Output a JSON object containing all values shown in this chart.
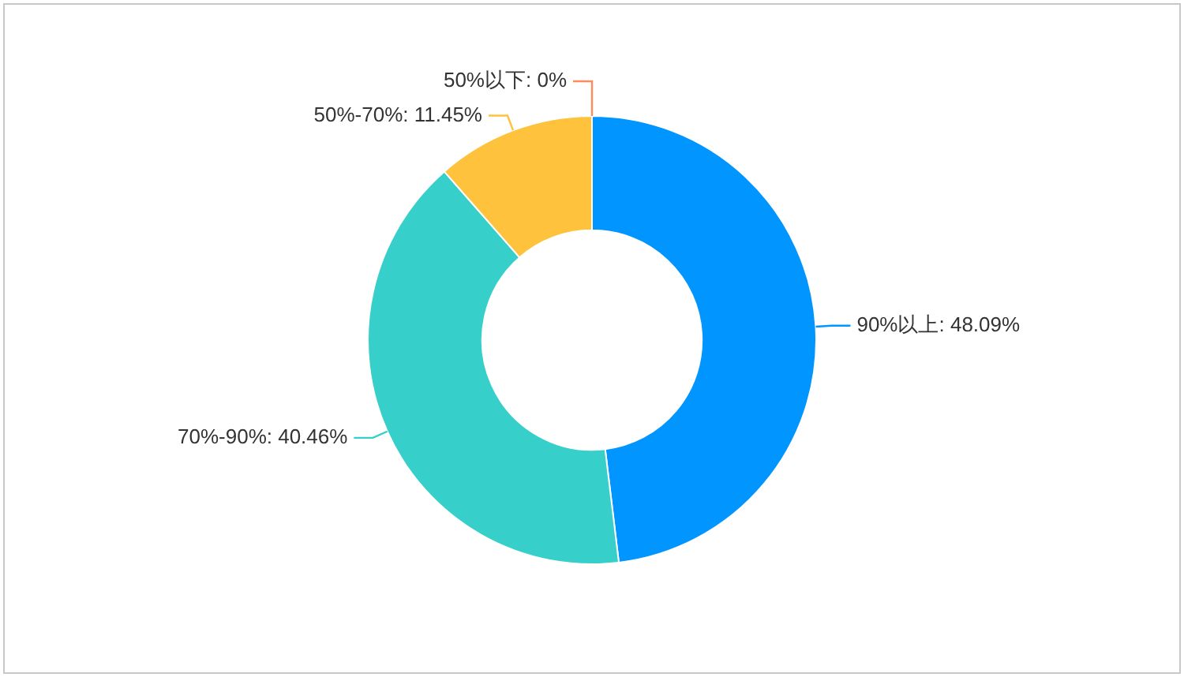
{
  "chart_data": {
    "type": "donut",
    "categories": [
      "90%以上",
      "70%-90%",
      "50%-70%",
      "50%以下"
    ],
    "values": [
      48.09,
      40.46,
      11.45,
      0
    ],
    "colors": [
      "#0095ff",
      "#36cfc9",
      "#ffc23d",
      "#ff8c5a"
    ],
    "value_labels": [
      ": 48.09%",
      ": 40.46%",
      ": 11.45%",
      ": 0%"
    ],
    "legend": false
  }
}
